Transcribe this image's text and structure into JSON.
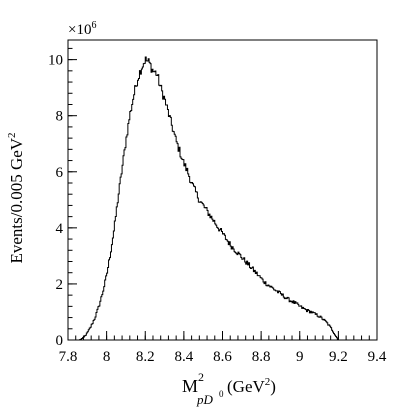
{
  "chart_data": {
    "type": "line",
    "style": "step-histogram",
    "xlabel_base": "M",
    "xlabel_sup": "2",
    "xlabel_sub": "pD",
    "xlabel_subsup": "0",
    "xlabel_units_open": " (GeV",
    "xlabel_units_sup": "2",
    "xlabel_units_close": ")",
    "ylabel_text": "Events/0.005 GeV",
    "ylabel_sup": "2",
    "y_multiplier_base": "×10",
    "y_multiplier_exp": "6",
    "xlim": [
      7.8,
      9.4
    ],
    "ylim": [
      0,
      10.7
    ],
    "x_ticks": [
      7.8,
      8,
      8.2,
      8.4,
      8.6,
      8.8,
      9,
      9.2,
      9.4
    ],
    "x_tick_labels": [
      "7.8",
      "8",
      "8.2",
      "8.4",
      "8.6",
      "8.8",
      "9",
      "9.2",
      "9.4"
    ],
    "y_ticks": [
      0,
      2,
      4,
      6,
      8,
      10
    ],
    "y_tick_labels": [
      "0",
      "2",
      "4",
      "6",
      "8",
      "10"
    ],
    "grid": false,
    "legend": "none",
    "bin_width": 0.005,
    "series": [
      {
        "x": [
          7.86,
          7.88,
          7.9,
          7.92,
          7.94,
          7.96,
          7.98,
          8.0,
          8.02,
          8.04,
          8.06,
          8.08,
          8.1,
          8.12,
          8.14,
          8.16,
          8.18,
          8.2,
          8.22,
          8.24,
          8.26,
          8.28,
          8.3,
          8.32,
          8.34,
          8.36,
          8.38,
          8.4,
          8.42,
          8.44,
          8.46,
          8.48,
          8.5,
          8.52,
          8.54,
          8.56,
          8.58,
          8.6,
          8.62,
          8.64,
          8.66,
          8.68,
          8.7,
          8.72,
          8.74,
          8.76,
          8.78,
          8.8,
          8.82,
          8.84,
          8.86,
          8.88,
          8.9,
          8.92,
          8.94,
          8.96,
          8.98,
          9.0,
          9.02,
          9.04,
          9.06,
          9.08,
          9.1,
          9.12,
          9.14,
          9.16,
          9.18,
          9.2
        ],
        "values": [
          0.0,
          0.08,
          0.25,
          0.5,
          0.8,
          1.2,
          1.7,
          2.3,
          3.1,
          4.0,
          5.1,
          6.1,
          7.1,
          8.0,
          8.7,
          9.3,
          9.7,
          10.0,
          9.9,
          9.6,
          9.5,
          9.0,
          8.6,
          8.1,
          7.6,
          7.1,
          6.7,
          6.3,
          6.0,
          5.6,
          5.3,
          5.0,
          4.8,
          4.6,
          4.4,
          4.2,
          4.0,
          3.8,
          3.6,
          3.4,
          3.25,
          3.1,
          2.95,
          2.8,
          2.65,
          2.5,
          2.35,
          2.2,
          2.05,
          1.95,
          1.85,
          1.75,
          1.65,
          1.55,
          1.45,
          1.38,
          1.3,
          1.2,
          1.12,
          1.05,
          1.0,
          0.92,
          0.85,
          0.75,
          0.62,
          0.45,
          0.22,
          0.0
        ]
      }
    ]
  }
}
